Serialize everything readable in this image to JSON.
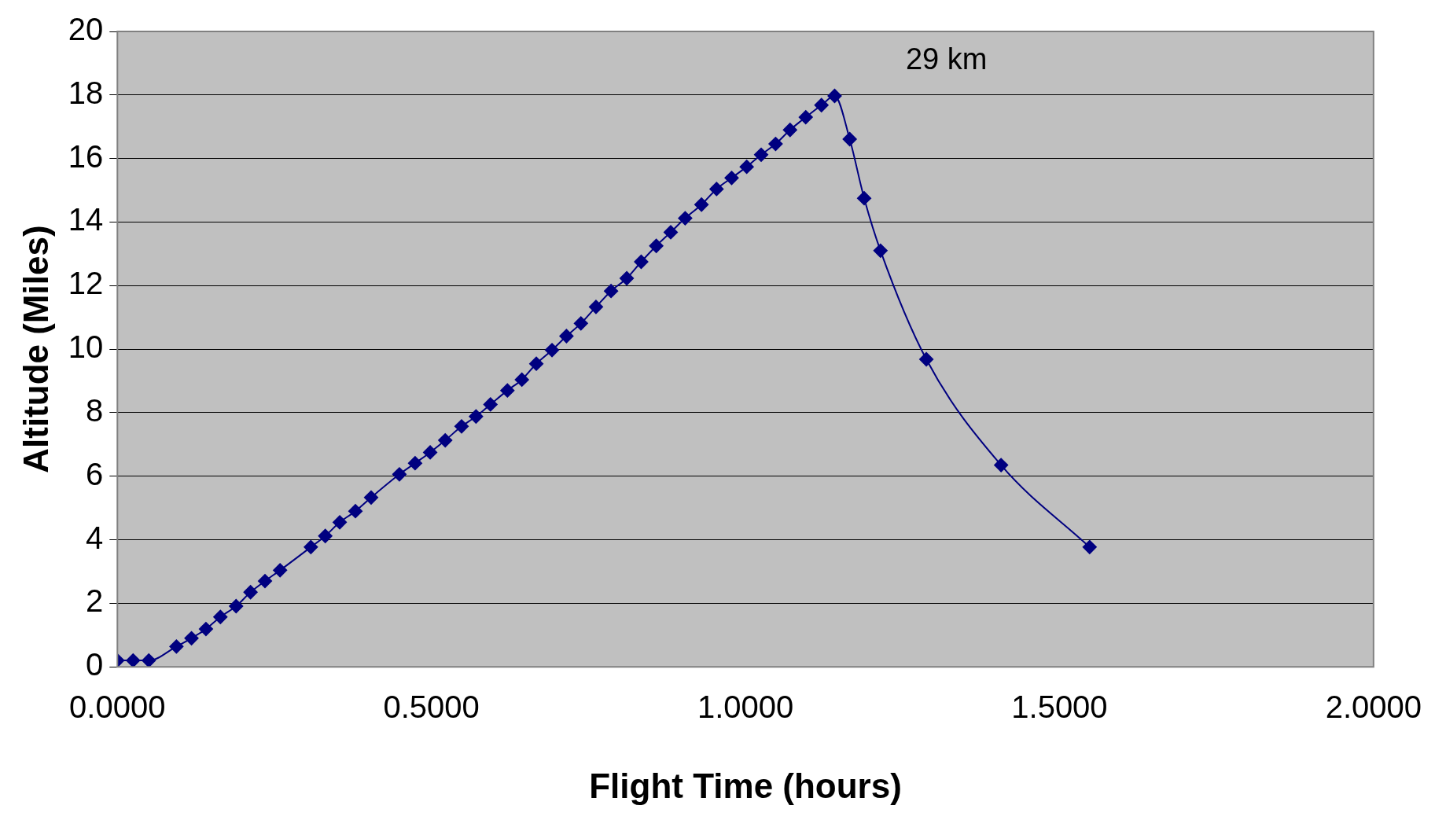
{
  "chart_data": {
    "type": "line",
    "xlabel": "Flight Time (hours)",
    "ylabel": "Altitude (Miles)",
    "xlim": [
      0,
      2
    ],
    "xticks": [
      {
        "value": 0,
        "label": "0.0000"
      },
      {
        "value": 0.5,
        "label": "0.5000"
      },
      {
        "value": 1,
        "label": "1.0000"
      },
      {
        "value": 1.5,
        "label": "1.5000"
      },
      {
        "value": 2,
        "label": "2.0000"
      }
    ],
    "ylim": [
      0,
      20
    ],
    "yticks": [
      0,
      2,
      4,
      6,
      8,
      10,
      12,
      14,
      16,
      18,
      20
    ],
    "grid": "y",
    "marker": "diamond",
    "line_style": "solid",
    "legend": false,
    "annotations": [
      "29 km"
    ],
    "x": [
      0,
      0.025,
      0.05,
      0.094,
      0.118,
      0.141,
      0.164,
      0.189,
      0.212,
      0.235,
      0.259,
      0.308,
      0.331,
      0.354,
      0.379,
      0.404,
      0.449,
      0.474,
      0.498,
      0.522,
      0.548,
      0.571,
      0.594,
      0.621,
      0.644,
      0.667,
      0.692,
      0.715,
      0.738,
      0.762,
      0.786,
      0.811,
      0.834,
      0.858,
      0.881,
      0.904,
      0.93,
      0.954,
      0.978,
      1.002,
      1.025,
      1.048,
      1.071,
      1.096,
      1.121,
      1.142,
      1.166,
      1.189,
      1.215,
      1.288,
      1.407,
      1.548
    ],
    "series": [
      {
        "color": "#000080",
        "values": [
          0.2,
          0.2,
          0.2,
          0.64,
          0.9,
          1.19,
          1.57,
          1.91,
          2.35,
          2.7,
          3.04,
          3.77,
          4.12,
          4.55,
          4.9,
          5.33,
          6.06,
          6.41,
          6.75,
          7.13,
          7.57,
          7.88,
          8.26,
          8.7,
          9.04,
          9.54,
          9.97,
          10.41,
          10.81,
          11.33,
          11.83,
          12.23,
          12.75,
          13.25,
          13.68,
          14.12,
          14.55,
          15.04,
          15.39,
          15.74,
          16.12,
          16.46,
          16.9,
          17.3,
          17.68,
          17.97,
          16.61,
          14.75,
          13.1,
          9.68,
          6.35,
          3.77
        ]
      }
    ]
  }
}
